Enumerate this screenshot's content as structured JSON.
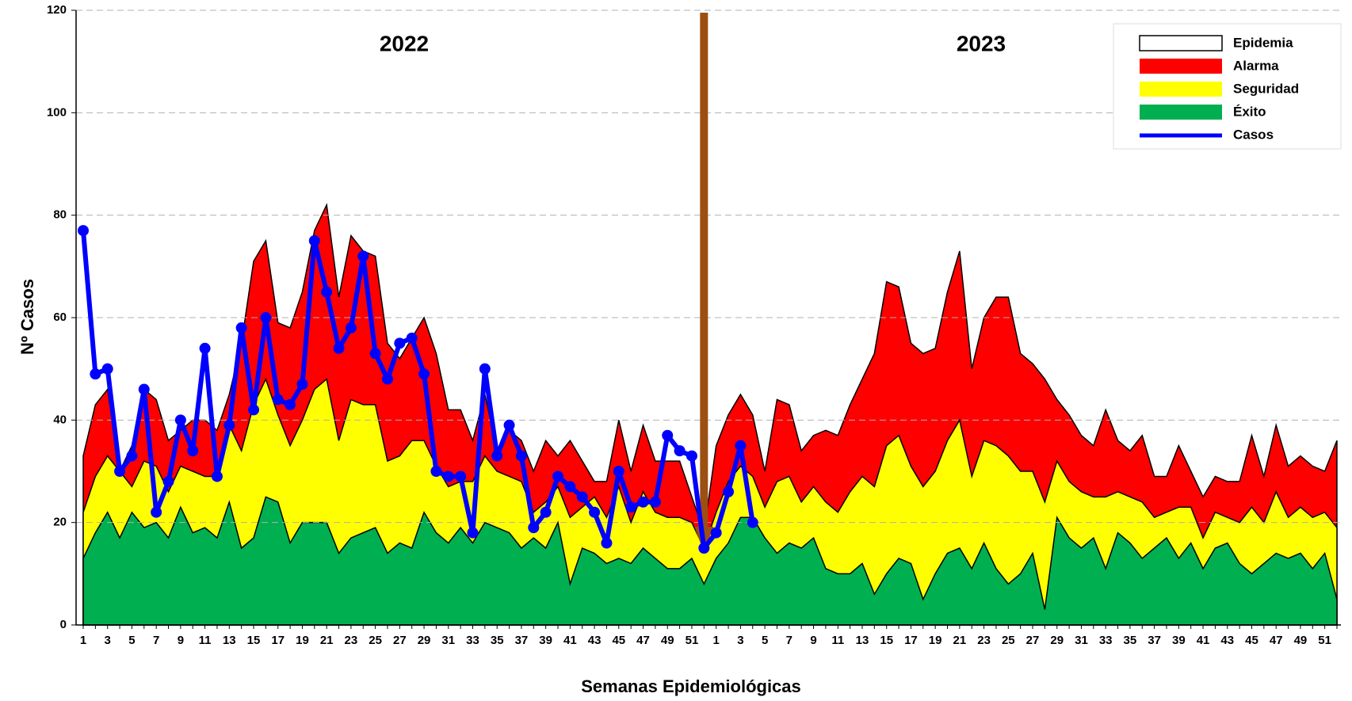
{
  "chart_data": {
    "type": "area",
    "x_label": "Semanas Epidemiológicas",
    "y_label": "Nº Casos",
    "annotations": [
      "2022",
      "2023"
    ],
    "categories": [
      "1",
      null,
      "3",
      null,
      "5",
      null,
      "7",
      null,
      "9",
      null,
      "11",
      null,
      "13",
      null,
      "15",
      null,
      "17",
      null,
      "19",
      null,
      "21",
      null,
      "23",
      null,
      "25",
      null,
      "27",
      null,
      "29",
      null,
      "31",
      null,
      "33",
      null,
      "35",
      null,
      "37",
      null,
      "39",
      null,
      "41",
      null,
      "43",
      null,
      "45",
      null,
      "47",
      null,
      "49",
      null,
      "51",
      null,
      "1",
      null,
      "3",
      null,
      "5",
      null,
      "7",
      null,
      "9",
      null,
      "11",
      null,
      "13",
      null,
      "15",
      null,
      "17",
      null,
      "19",
      null,
      "21",
      null,
      "23",
      null,
      "25",
      null,
      "27",
      null,
      "29",
      null,
      "31",
      null,
      "33",
      null,
      "35",
      null,
      "37",
      null,
      "39",
      null,
      "41",
      null,
      "43",
      null,
      "45",
      null,
      "47",
      null,
      "49",
      null,
      "51",
      null
    ],
    "ylim": [
      0,
      120
    ],
    "yticks": [
      0,
      20,
      40,
      60,
      80,
      100,
      120
    ],
    "grid": true,
    "series": [
      {
        "name": "Epidemia",
        "color": "#ffffff"
      },
      {
        "name": "Alarma",
        "color": "#ff0000",
        "values": [
          33,
          43,
          46,
          30,
          35,
          46,
          44,
          36,
          38,
          40,
          40,
          38,
          45,
          55,
          71,
          75,
          59,
          58,
          65,
          77,
          82,
          64,
          76,
          73,
          72,
          55,
          52,
          56,
          60,
          53,
          42,
          42,
          36,
          45,
          34,
          38,
          36,
          30,
          36,
          33,
          36,
          32,
          28,
          28,
          40,
          30,
          39,
          32,
          32,
          32,
          25,
          18,
          35,
          41,
          45,
          41,
          30,
          44,
          43,
          34,
          37,
          38,
          37,
          43,
          48,
          53,
          67,
          66,
          55,
          53,
          54,
          65,
          73,
          50,
          60,
          64,
          64,
          53,
          51,
          48,
          44,
          41,
          37,
          35,
          42,
          36,
          34,
          37,
          29,
          29,
          35,
          30,
          25,
          29,
          28,
          28,
          37,
          29,
          39,
          31,
          33,
          31,
          30,
          36
        ]
      },
      {
        "name": "Seguridad",
        "color": "#ffff00",
        "values": [
          22,
          29,
          33,
          30,
          27,
          32,
          31,
          26,
          31,
          30,
          29,
          29,
          39,
          34,
          43,
          48,
          41,
          35,
          40,
          46,
          48,
          36,
          44,
          43,
          43,
          32,
          33,
          36,
          36,
          31,
          27,
          28,
          28,
          33,
          30,
          29,
          28,
          22,
          24,
          27,
          21,
          23,
          25,
          21,
          27,
          20,
          26,
          22,
          21,
          21,
          20,
          15,
          22,
          28,
          31,
          29,
          23,
          28,
          29,
          24,
          27,
          24,
          22,
          26,
          29,
          27,
          35,
          37,
          31,
          27,
          30,
          36,
          40,
          29,
          36,
          35,
          33,
          30,
          30,
          24,
          32,
          28,
          26,
          25,
          25,
          26,
          25,
          24,
          21,
          22,
          23,
          23,
          17,
          22,
          21,
          20,
          23,
          20,
          26,
          21,
          23,
          21,
          22,
          19
        ]
      },
      {
        "name": "Éxito",
        "color": "#00b050",
        "values": [
          13,
          18,
          22,
          17,
          22,
          19,
          20,
          17,
          23,
          18,
          19,
          17,
          24,
          15,
          17,
          25,
          24,
          16,
          20,
          20,
          20,
          14,
          17,
          18,
          19,
          14,
          16,
          15,
          22,
          18,
          16,
          19,
          16,
          20,
          19,
          18,
          15,
          17,
          15,
          20,
          8,
          15,
          14,
          12,
          13,
          12,
          15,
          13,
          11,
          11,
          13,
          8,
          13,
          16,
          21,
          21,
          17,
          14,
          16,
          15,
          17,
          11,
          10,
          10,
          12,
          6,
          10,
          13,
          12,
          5,
          10,
          14,
          15,
          11,
          16,
          11,
          8,
          10,
          14,
          3,
          21,
          17,
          15,
          17,
          11,
          18,
          16,
          13,
          15,
          17,
          13,
          16,
          11,
          15,
          16,
          12,
          10,
          12,
          14,
          13,
          14,
          11,
          14,
          5
        ]
      },
      {
        "name": "Casos",
        "color": "#0000ff",
        "line": true,
        "values": [
          77,
          49,
          50,
          30,
          33,
          46,
          22,
          28,
          40,
          34,
          54,
          29,
          39,
          58,
          42,
          60,
          44,
          43,
          47,
          75,
          65,
          54,
          58,
          72,
          53,
          48,
          55,
          56,
          49,
          30,
          29,
          29,
          18,
          50,
          33,
          39,
          33,
          19,
          22,
          29,
          27,
          25,
          22,
          16,
          30,
          23,
          24,
          24,
          37,
          34,
          33,
          15,
          18,
          26,
          35,
          20,
          null,
          null,
          null,
          null,
          null,
          null,
          null,
          null,
          null,
          null,
          null,
          null,
          null,
          null,
          null,
          null,
          null,
          null,
          null,
          null,
          null,
          null,
          null,
          null,
          null,
          null,
          null,
          null,
          null,
          null,
          null,
          null,
          null,
          null,
          null,
          null,
          null,
          null,
          null,
          null,
          null,
          null,
          null,
          null,
          null,
          null,
          null,
          null
        ]
      }
    ]
  }
}
